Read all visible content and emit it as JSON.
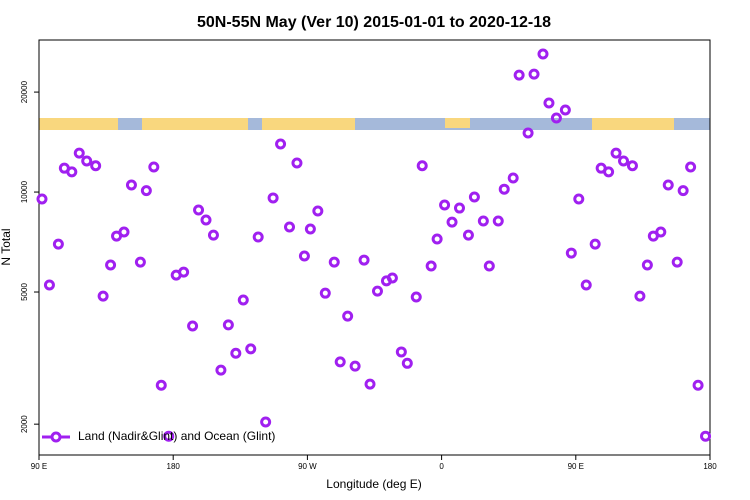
{
  "chart_data": {
    "type": "scatter",
    "title": "50N-55N May (Ver 10)   2015-01-01 to 2020-12-18",
    "x_label": "Longitude (deg E)",
    "y_label": "N Total",
    "yscale": "log",
    "xlim": [
      90,
      540
    ],
    "ylim": [
      1615,
      28700
    ],
    "xticks": [
      {
        "value": 90,
        "label": "90 E"
      },
      {
        "value": 180,
        "label": "180"
      },
      {
        "value": 270,
        "label": "90 W"
      },
      {
        "value": 360,
        "label": "0"
      },
      {
        "value": 450,
        "label": "90 E"
      },
      {
        "value": 540,
        "label": "180"
      }
    ],
    "yticks": [
      2000,
      5000,
      10000,
      20000
    ],
    "legend_loc": "lower left",
    "x": [
      92,
      97,
      103,
      107,
      112,
      117,
      122,
      128,
      133,
      138,
      142,
      147,
      152,
      158,
      162,
      167,
      172,
      177,
      182,
      187,
      193,
      197,
      202,
      207,
      212,
      217,
      222,
      227,
      232,
      237,
      242,
      247,
      252,
      258,
      263,
      268,
      272,
      277,
      282,
      288,
      292,
      297,
      302,
      308,
      312,
      317,
      323,
      327,
      333,
      337,
      343,
      347,
      353,
      357,
      362,
      367,
      372,
      378,
      382,
      388,
      392,
      398,
      402,
      408,
      412,
      418,
      422,
      428,
      432,
      437,
      443,
      447,
      452,
      457,
      463,
      467,
      472,
      477,
      482,
      488,
      493,
      498,
      502,
      507,
      512,
      518,
      522,
      527,
      532,
      537
    ],
    "series": [
      {
        "name": "Land (Nadir&Glint) and Ocean (Glint)",
        "color": "#a020f0",
        "values": [
          9530,
          5250,
          6970,
          11800,
          11500,
          13100,
          12400,
          12000,
          4860,
          6030,
          7370,
          7580,
          10500,
          6150,
          10100,
          11900,
          2620,
          1840,
          5620,
          5740,
          3950,
          8830,
          8240,
          7420,
          2910,
          3980,
          3270,
          4730,
          3370,
          7320,
          2030,
          9600,
          13950,
          7850,
          12230,
          6420,
          7740,
          8770,
          4960,
          6150,
          3080,
          4230,
          2990,
          6240,
          2640,
          5030,
          5400,
          5510,
          3300,
          3050,
          4830,
          12000,
          5990,
          7220,
          9140,
          8120,
          8950,
          7420,
          9660,
          8180,
          5990,
          8180,
          10200,
          11020,
          22500,
          15060,
          22650,
          26050,
          18540,
          16710,
          17660,
          6550,
          9530,
          5250,
          6970,
          11800,
          11500,
          13100,
          12400,
          12000,
          4860,
          6030,
          7370,
          7580,
          10500,
          6150,
          10100,
          11900,
          2620,
          1840
        ]
      }
    ]
  }
}
